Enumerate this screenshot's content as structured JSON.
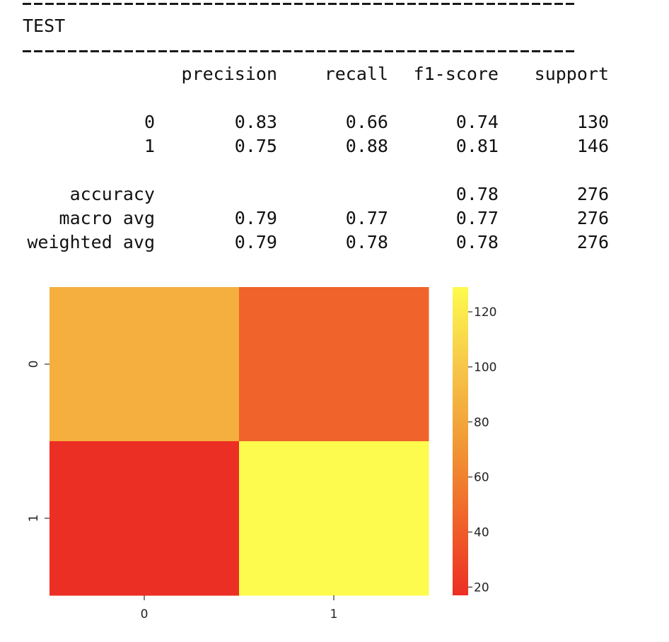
{
  "report": {
    "title": "TEST",
    "headers": [
      "precision",
      "recall",
      "f1-score",
      "support"
    ],
    "rows": [
      {
        "label": "0",
        "precision": "0.83",
        "recall": "0.66",
        "f1": "0.74",
        "support": "130"
      },
      {
        "label": "1",
        "precision": "0.75",
        "recall": "0.88",
        "f1": "0.81",
        "support": "146"
      },
      {
        "label": "accuracy",
        "precision": "",
        "recall": "",
        "f1": "0.78",
        "support": "276"
      },
      {
        "label": "macro avg",
        "precision": "0.79",
        "recall": "0.77",
        "f1": "0.77",
        "support": "276"
      },
      {
        "label": "weighted avg",
        "precision": "0.79",
        "recall": "0.78",
        "f1": "0.78",
        "support": "276"
      }
    ]
  },
  "chart_data": {
    "type": "heatmap",
    "x_categories": [
      "0",
      "1"
    ],
    "y_categories": [
      "0",
      "1"
    ],
    "values": [
      [
        86,
        44
      ],
      [
        17,
        129
      ]
    ],
    "colorbar": {
      "min": 17,
      "max": 129,
      "ticks": [
        "20",
        "40",
        "60",
        "80",
        "100",
        "120"
      ],
      "colormap": [
        "#ec2f24",
        "#f0652a",
        "#f19a35",
        "#f7c84a",
        "#fdfb4d"
      ]
    },
    "title": "",
    "xlabel": "",
    "ylabel": ""
  }
}
